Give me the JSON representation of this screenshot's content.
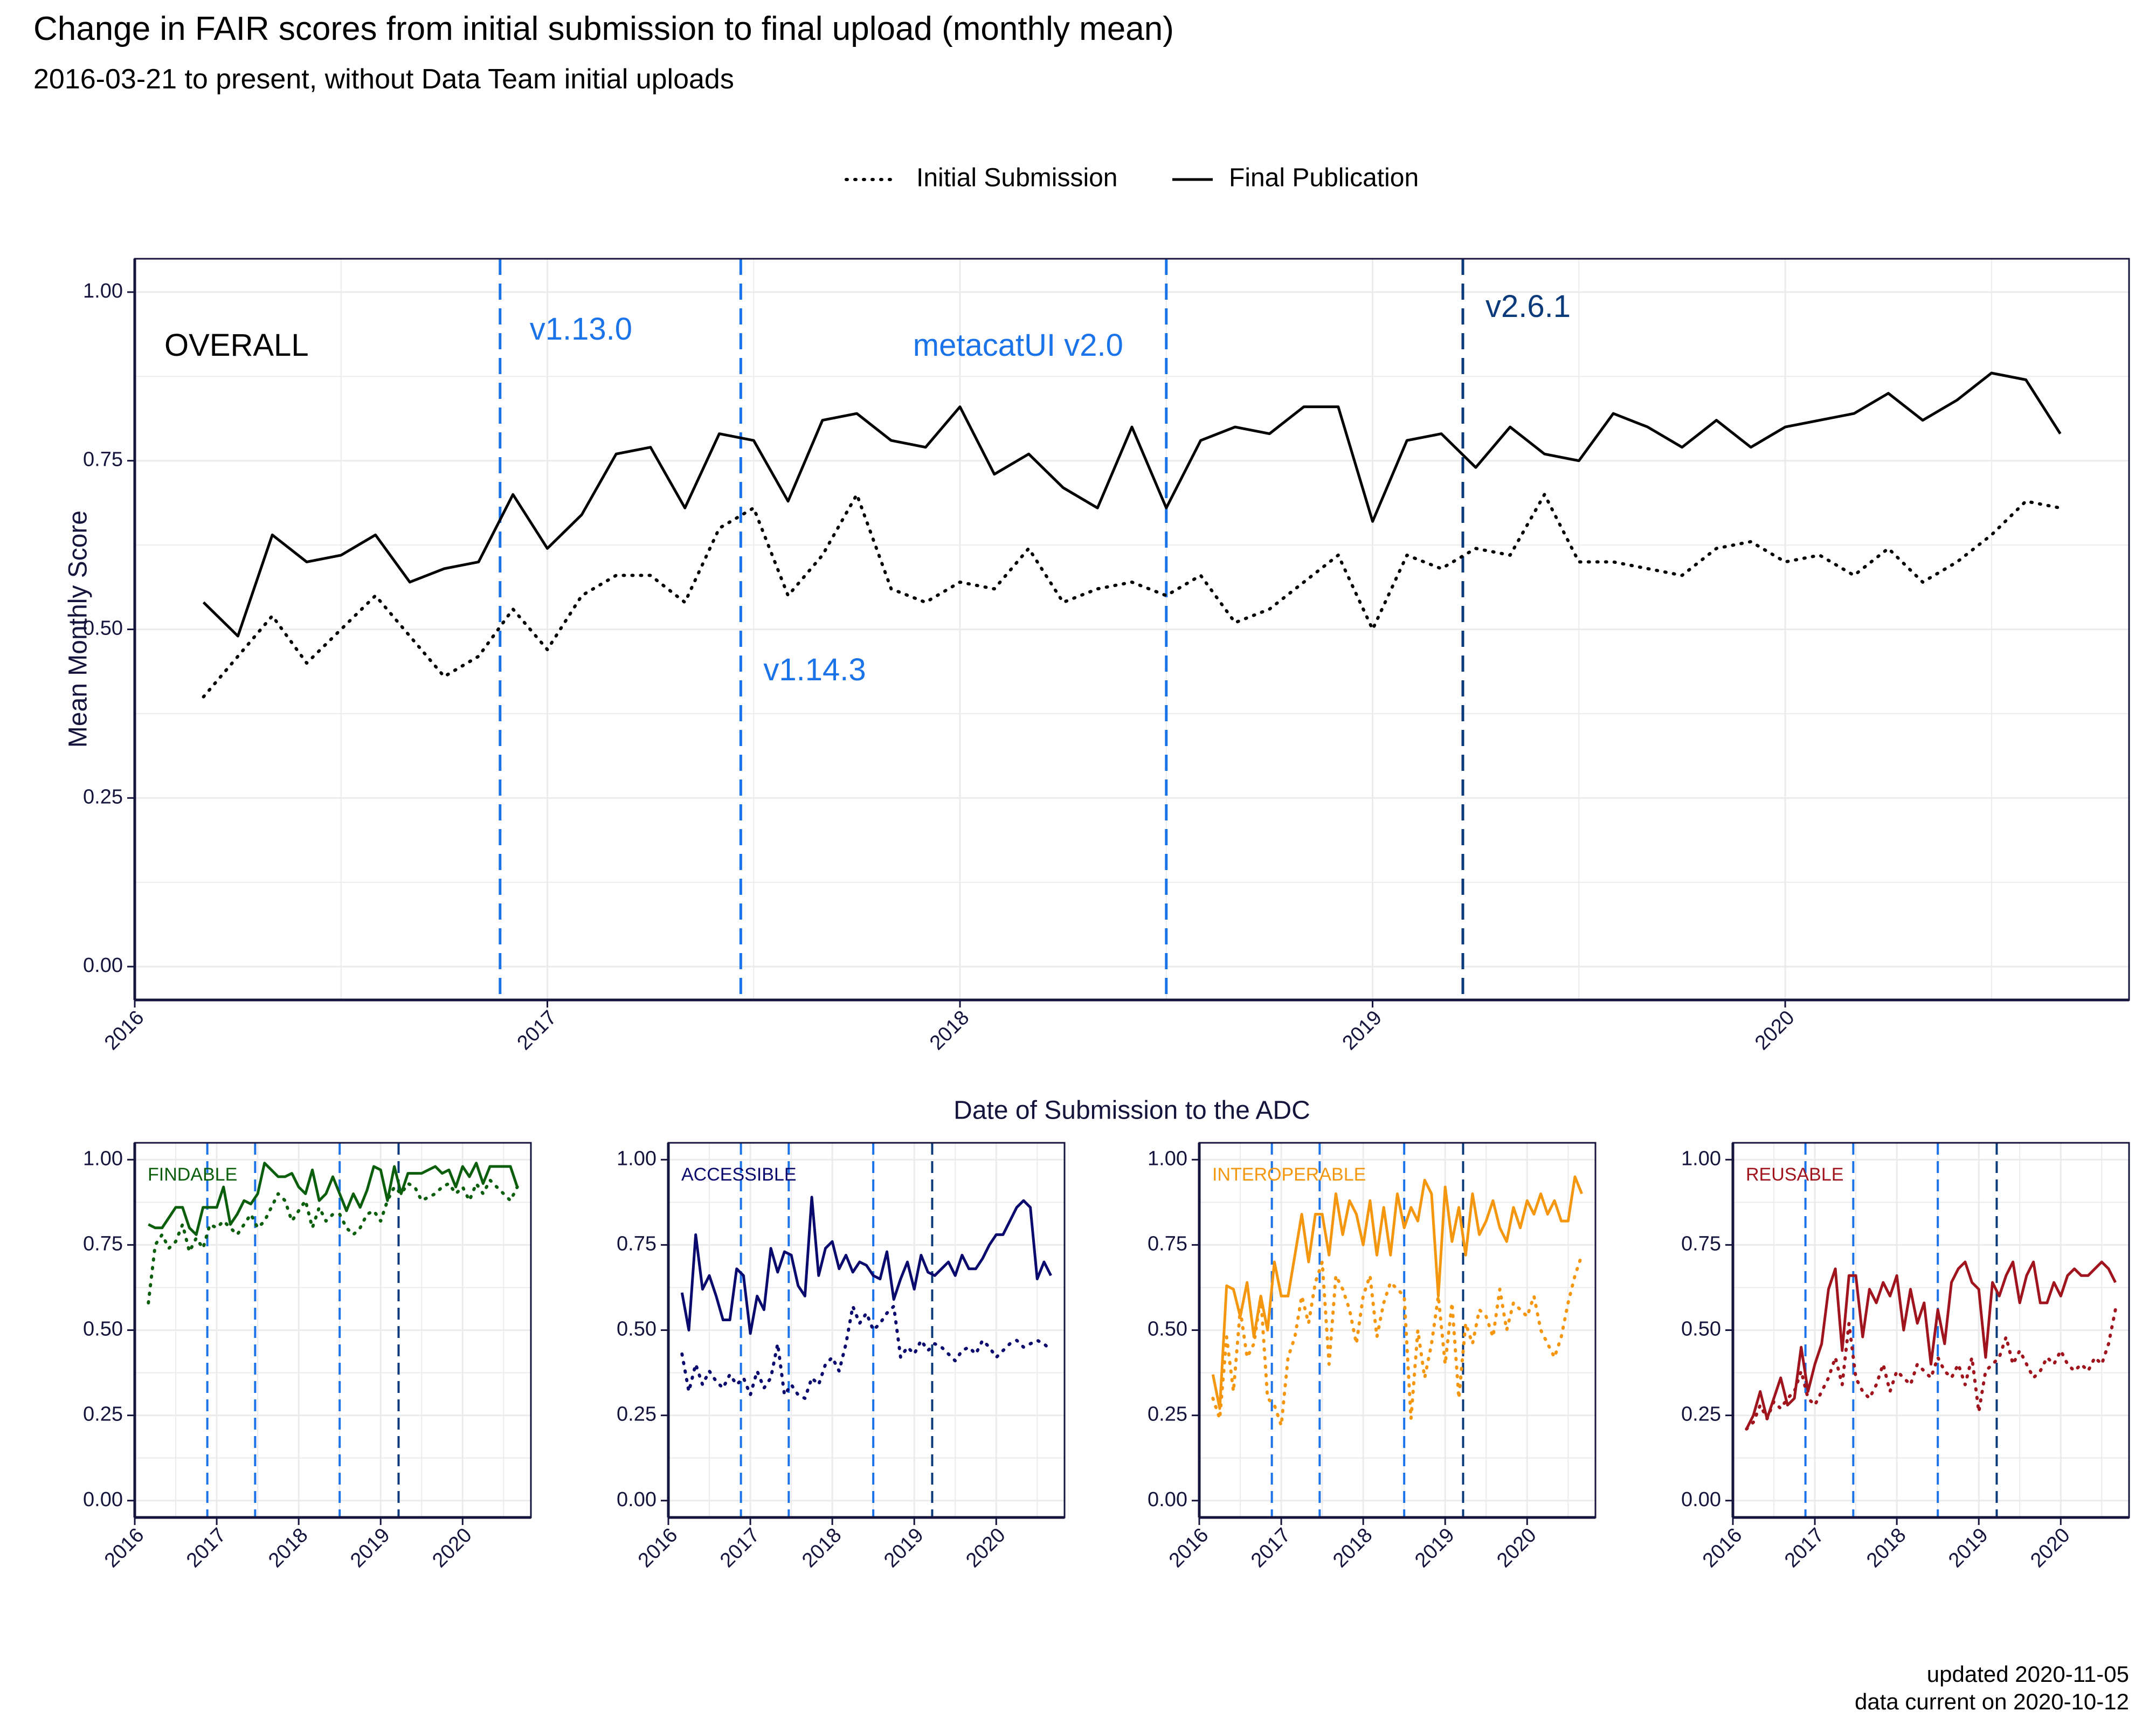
{
  "header": {
    "title": "Change in FAIR scores from initial submission to final upload (monthly mean)",
    "subtitle": "2016-03-21 to present, without Data Team initial uploads"
  },
  "footer": {
    "updated": "updated 2020-11-05",
    "data_current": "data current on 2020-10-12"
  },
  "colors": {
    "release_light": "#1a73e8",
    "release_dark": "#0b3a7a",
    "overall": "#000000",
    "findable": "#0b5e0b",
    "accessible": "#0a0a6e",
    "interoperable": "#f5960f",
    "reusable": "#a0141e",
    "axis": "#14143c",
    "grid": "#ebebeb"
  },
  "chart_data": [
    {
      "type": "line",
      "panel": "OVERALL",
      "xlabel": "Date of Submission to the ADC",
      "ylabel": "Mean Monthly Score",
      "x_ticks": [
        "2016",
        "2017",
        "2018",
        "2019",
        "2020"
      ],
      "y_ticks": [
        "0.00",
        "0.25",
        "0.50",
        "0.75",
        "1.00"
      ],
      "ylim": [
        0,
        1
      ],
      "xlim": [
        "2016-01-01",
        "2020-11-01"
      ],
      "legend": {
        "position": "top-center",
        "entries": [
          "Initial Submission",
          "Final Publication"
        ]
      },
      "releases": [
        {
          "label": "v1.13.0",
          "date": "2016-11-20",
          "style": "light"
        },
        {
          "label": "v1.14.3",
          "date": "2017-06-20",
          "style": "light"
        },
        {
          "label": "metacatUI v2.0",
          "date": "2018-07-01",
          "style": "light"
        },
        {
          "label": "v2.6.1",
          "date": "2019-03-20",
          "style": "dark"
        }
      ],
      "x": [
        "2016-03",
        "2016-04",
        "2016-05",
        "2016-06",
        "2016-07",
        "2016-08",
        "2016-09",
        "2016-10",
        "2016-11",
        "2016-12",
        "2017-01",
        "2017-02",
        "2017-03",
        "2017-04",
        "2017-05",
        "2017-06",
        "2017-07",
        "2017-08",
        "2017-09",
        "2017-10",
        "2017-11",
        "2017-12",
        "2018-01",
        "2018-02",
        "2018-03",
        "2018-04",
        "2018-05",
        "2018-06",
        "2018-07",
        "2018-08",
        "2018-09",
        "2018-10",
        "2018-11",
        "2018-12",
        "2019-01",
        "2019-02",
        "2019-03",
        "2019-04",
        "2019-05",
        "2019-06",
        "2019-07",
        "2019-08",
        "2019-09",
        "2019-10",
        "2019-11",
        "2019-12",
        "2020-01",
        "2020-02",
        "2020-03",
        "2020-04",
        "2020-05",
        "2020-06",
        "2020-07",
        "2020-08",
        "2020-09"
      ],
      "series": [
        {
          "name": "Initial Submission",
          "dash": "dotted",
          "values": [
            0.4,
            0.46,
            0.52,
            0.45,
            0.5,
            0.55,
            0.49,
            0.43,
            0.46,
            0.53,
            0.47,
            0.55,
            0.58,
            0.58,
            0.54,
            0.65,
            0.68,
            0.55,
            0.61,
            0.7,
            0.56,
            0.54,
            0.57,
            0.56,
            0.62,
            0.54,
            0.56,
            0.57,
            0.55,
            0.58,
            0.51,
            0.53,
            0.57,
            0.61,
            0.5,
            0.61,
            0.59,
            0.62,
            0.61,
            0.7,
            0.6,
            0.6,
            0.59,
            0.58,
            0.62,
            0.63,
            0.6,
            0.61,
            0.58,
            0.62,
            0.57,
            0.6,
            0.64,
            0.69,
            0.68
          ]
        },
        {
          "name": "Final Publication",
          "dash": "solid",
          "values": [
            0.54,
            0.49,
            0.64,
            0.6,
            0.61,
            0.64,
            0.57,
            0.59,
            0.6,
            0.7,
            0.62,
            0.67,
            0.76,
            0.77,
            0.68,
            0.79,
            0.78,
            0.69,
            0.81,
            0.82,
            0.78,
            0.77,
            0.83,
            0.73,
            0.76,
            0.71,
            0.68,
            0.8,
            0.68,
            0.78,
            0.8,
            0.79,
            0.83,
            0.83,
            0.66,
            0.78,
            0.79,
            0.74,
            0.8,
            0.76,
            0.75,
            0.82,
            0.8,
            0.77,
            0.81,
            0.77,
            0.8,
            0.81,
            0.82,
            0.85,
            0.81,
            0.84,
            0.88,
            0.87,
            0.79
          ]
        }
      ]
    },
    {
      "type": "line",
      "panel": "FINDABLE",
      "x_ticks": [
        "2016",
        "2017",
        "2018",
        "2019",
        "2020"
      ],
      "y_ticks": [
        "0.00",
        "0.25",
        "0.50",
        "0.75",
        "1.00"
      ],
      "ylim": [
        0,
        1
      ],
      "xlim": [
        "2016-01-01",
        "2020-11-01"
      ],
      "x_start": "2016-03",
      "series": [
        {
          "name": "Initial Submission",
          "dash": "dotted",
          "values": [
            0.58,
            0.75,
            0.78,
            0.74,
            0.76,
            0.81,
            0.73,
            0.77,
            0.74,
            0.81,
            0.8,
            0.82,
            0.8,
            0.78,
            0.81,
            0.84,
            0.8,
            0.82,
            0.86,
            0.9,
            0.88,
            0.82,
            0.85,
            0.88,
            0.8,
            0.86,
            0.82,
            0.84,
            0.84,
            0.8,
            0.78,
            0.8,
            0.84,
            0.85,
            0.82,
            0.88,
            0.92,
            0.9,
            0.93,
            0.92,
            0.88,
            0.89,
            0.9,
            0.92,
            0.93,
            0.9,
            0.92,
            0.88,
            0.93,
            0.9,
            0.94,
            0.92,
            0.9,
            0.88,
            0.92
          ]
        },
        {
          "name": "Final Publication",
          "dash": "solid",
          "values": [
            0.81,
            0.8,
            0.8,
            0.83,
            0.86,
            0.86,
            0.8,
            0.78,
            0.86,
            0.86,
            0.86,
            0.92,
            0.81,
            0.84,
            0.88,
            0.87,
            0.9,
            0.99,
            0.97,
            0.95,
            0.95,
            0.96,
            0.92,
            0.9,
            0.97,
            0.88,
            0.9,
            0.95,
            0.9,
            0.85,
            0.9,
            0.86,
            0.91,
            0.98,
            0.97,
            0.88,
            0.98,
            0.9,
            0.96,
            0.96,
            0.96,
            0.97,
            0.98,
            0.96,
            0.97,
            0.92,
            0.98,
            0.95,
            0.99,
            0.93,
            0.98,
            0.98,
            0.98,
            0.98,
            0.92
          ]
        }
      ]
    },
    {
      "type": "line",
      "panel": "ACCESSIBLE",
      "x_ticks": [
        "2016",
        "2017",
        "2018",
        "2019",
        "2020"
      ],
      "y_ticks": [
        "0.00",
        "0.25",
        "0.50",
        "0.75",
        "1.00"
      ],
      "ylim": [
        0,
        1
      ],
      "xlim": [
        "2016-01-01",
        "2020-11-01"
      ],
      "x_start": "2016-03",
      "series": [
        {
          "name": "Initial Submission",
          "dash": "dotted",
          "values": [
            0.43,
            0.32,
            0.4,
            0.34,
            0.38,
            0.35,
            0.33,
            0.37,
            0.34,
            0.36,
            0.31,
            0.38,
            0.33,
            0.36,
            0.46,
            0.31,
            0.34,
            0.31,
            0.3,
            0.36,
            0.34,
            0.4,
            0.42,
            0.38,
            0.46,
            0.57,
            0.52,
            0.55,
            0.5,
            0.52,
            0.55,
            0.57,
            0.42,
            0.45,
            0.43,
            0.47,
            0.44,
            0.46,
            0.45,
            0.43,
            0.41,
            0.44,
            0.45,
            0.43,
            0.47,
            0.45,
            0.42,
            0.44,
            0.46,
            0.47,
            0.45,
            0.46,
            0.47,
            0.46,
            0.44
          ]
        },
        {
          "name": "Final Publication",
          "dash": "solid",
          "values": [
            0.61,
            0.5,
            0.78,
            0.62,
            0.66,
            0.6,
            0.53,
            0.53,
            0.68,
            0.66,
            0.49,
            0.6,
            0.56,
            0.74,
            0.67,
            0.73,
            0.72,
            0.63,
            0.6,
            0.89,
            0.66,
            0.74,
            0.76,
            0.68,
            0.72,
            0.67,
            0.7,
            0.69,
            0.66,
            0.65,
            0.73,
            0.59,
            0.65,
            0.7,
            0.62,
            0.72,
            0.67,
            0.66,
            0.68,
            0.7,
            0.66,
            0.72,
            0.68,
            0.68,
            0.71,
            0.75,
            0.78,
            0.78,
            0.82,
            0.86,
            0.88,
            0.86,
            0.65,
            0.7,
            0.66
          ]
        }
      ]
    },
    {
      "type": "line",
      "panel": "INTEROPERABLE",
      "x_ticks": [
        "2016",
        "2017",
        "2018",
        "2019",
        "2020"
      ],
      "y_ticks": [
        "0.00",
        "0.25",
        "0.50",
        "0.75",
        "1.00"
      ],
      "ylim": [
        0,
        1
      ],
      "xlim": [
        "2016-01-01",
        "2020-11-01"
      ],
      "x_start": "2016-03",
      "series": [
        {
          "name": "Initial Submission",
          "dash": "dotted",
          "values": [
            0.3,
            0.24,
            0.48,
            0.32,
            0.56,
            0.42,
            0.46,
            0.6,
            0.3,
            0.28,
            0.22,
            0.42,
            0.48,
            0.6,
            0.52,
            0.64,
            0.7,
            0.4,
            0.66,
            0.62,
            0.56,
            0.46,
            0.6,
            0.66,
            0.48,
            0.58,
            0.64,
            0.62,
            0.6,
            0.24,
            0.5,
            0.36,
            0.46,
            0.6,
            0.4,
            0.58,
            0.3,
            0.52,
            0.46,
            0.56,
            0.54,
            0.48,
            0.62,
            0.5,
            0.58,
            0.56,
            0.54,
            0.6,
            0.5,
            0.46,
            0.42,
            0.48,
            0.58,
            0.66,
            0.72
          ]
        },
        {
          "name": "Final Publication",
          "dash": "solid",
          "values": [
            0.37,
            0.27,
            0.63,
            0.62,
            0.54,
            0.64,
            0.48,
            0.6,
            0.5,
            0.7,
            0.6,
            0.6,
            0.72,
            0.84,
            0.7,
            0.84,
            0.84,
            0.72,
            0.9,
            0.78,
            0.88,
            0.84,
            0.75,
            0.88,
            0.72,
            0.86,
            0.72,
            0.9,
            0.8,
            0.86,
            0.82,
            0.94,
            0.9,
            0.6,
            0.92,
            0.76,
            0.86,
            0.72,
            0.9,
            0.78,
            0.82,
            0.88,
            0.8,
            0.76,
            0.86,
            0.8,
            0.88,
            0.84,
            0.9,
            0.84,
            0.88,
            0.82,
            0.82,
            0.95,
            0.9
          ]
        }
      ]
    },
    {
      "type": "line",
      "panel": "REUSABLE",
      "x_ticks": [
        "2016",
        "2017",
        "2018",
        "2019",
        "2020"
      ],
      "y_ticks": [
        "0.00",
        "0.25",
        "0.50",
        "0.75",
        "1.00"
      ],
      "ylim": [
        0,
        1
      ],
      "xlim": [
        "2016-01-01",
        "2020-11-01"
      ],
      "x_start": "2016-03",
      "series": [
        {
          "name": "Initial Submission",
          "dash": "dotted",
          "values": [
            0.21,
            0.23,
            0.28,
            0.24,
            0.29,
            0.27,
            0.3,
            0.32,
            0.38,
            0.3,
            0.28,
            0.32,
            0.36,
            0.42,
            0.34,
            0.52,
            0.36,
            0.32,
            0.3,
            0.34,
            0.4,
            0.32,
            0.38,
            0.36,
            0.34,
            0.4,
            0.38,
            0.36,
            0.42,
            0.38,
            0.36,
            0.4,
            0.34,
            0.42,
            0.26,
            0.38,
            0.4,
            0.42,
            0.48,
            0.4,
            0.44,
            0.4,
            0.36,
            0.38,
            0.42,
            0.4,
            0.44,
            0.4,
            0.38,
            0.4,
            0.38,
            0.42,
            0.4,
            0.46,
            0.56
          ]
        },
        {
          "name": "Final Publication",
          "dash": "solid",
          "values": [
            0.21,
            0.25,
            0.32,
            0.24,
            0.3,
            0.36,
            0.28,
            0.3,
            0.45,
            0.32,
            0.4,
            0.46,
            0.62,
            0.68,
            0.44,
            0.66,
            0.66,
            0.48,
            0.62,
            0.58,
            0.64,
            0.6,
            0.66,
            0.5,
            0.62,
            0.52,
            0.58,
            0.4,
            0.56,
            0.46,
            0.64,
            0.68,
            0.7,
            0.64,
            0.62,
            0.42,
            0.64,
            0.6,
            0.66,
            0.7,
            0.58,
            0.66,
            0.7,
            0.58,
            0.58,
            0.64,
            0.6,
            0.66,
            0.68,
            0.66,
            0.66,
            0.68,
            0.7,
            0.68,
            0.64
          ]
        }
      ]
    }
  ]
}
